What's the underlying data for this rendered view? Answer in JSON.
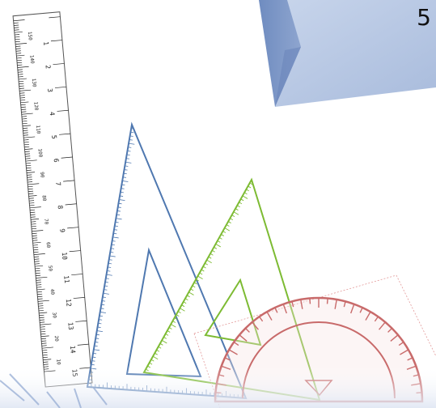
{
  "slide": {
    "number": "5"
  },
  "ruler": {
    "major_labels": [
      "1",
      "2",
      "3",
      "4",
      "5",
      "6",
      "7",
      "8",
      "9",
      "10",
      "11",
      "12",
      "13",
      "14",
      "15"
    ],
    "minor_labels": [
      "150",
      "140",
      "130",
      "120",
      "110",
      "100",
      "90",
      "80",
      "70",
      "60",
      "50",
      "40",
      "30",
      "20",
      "10"
    ]
  },
  "colors": {
    "box_front": "#b8c8e2",
    "box_side": "#7f98c6",
    "ruler_ink": "#222222",
    "triangle_blue": "#4f78b0",
    "triangle_green": "#7dbb33",
    "protractor_red": "#c86a6a",
    "protractor_fill": "#e9b7b7"
  },
  "icons": [
    "ruler",
    "set-square-blue",
    "set-square-green",
    "protractor",
    "blue-box"
  ]
}
